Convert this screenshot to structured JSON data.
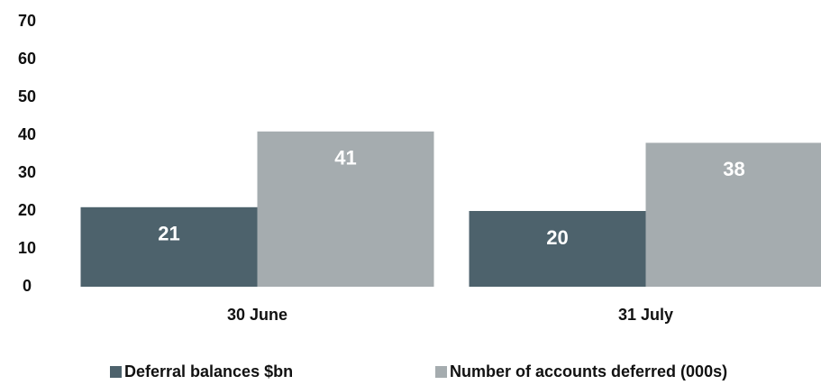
{
  "chart_data": {
    "type": "bar",
    "categories": [
      "30 June",
      "31 July"
    ],
    "series": [
      {
        "name": "Deferral balances $bn",
        "color": "#4d626c",
        "values": [
          21,
          20
        ]
      },
      {
        "name": "Number of accounts deferred (000s)",
        "color": "#a5acaf",
        "values": [
          41,
          38
        ]
      }
    ],
    "ylim": [
      0,
      70
    ],
    "yticks": [
      0,
      10,
      20,
      30,
      40,
      50,
      60,
      70
    ],
    "grid": false,
    "legend": "bottom"
  }
}
